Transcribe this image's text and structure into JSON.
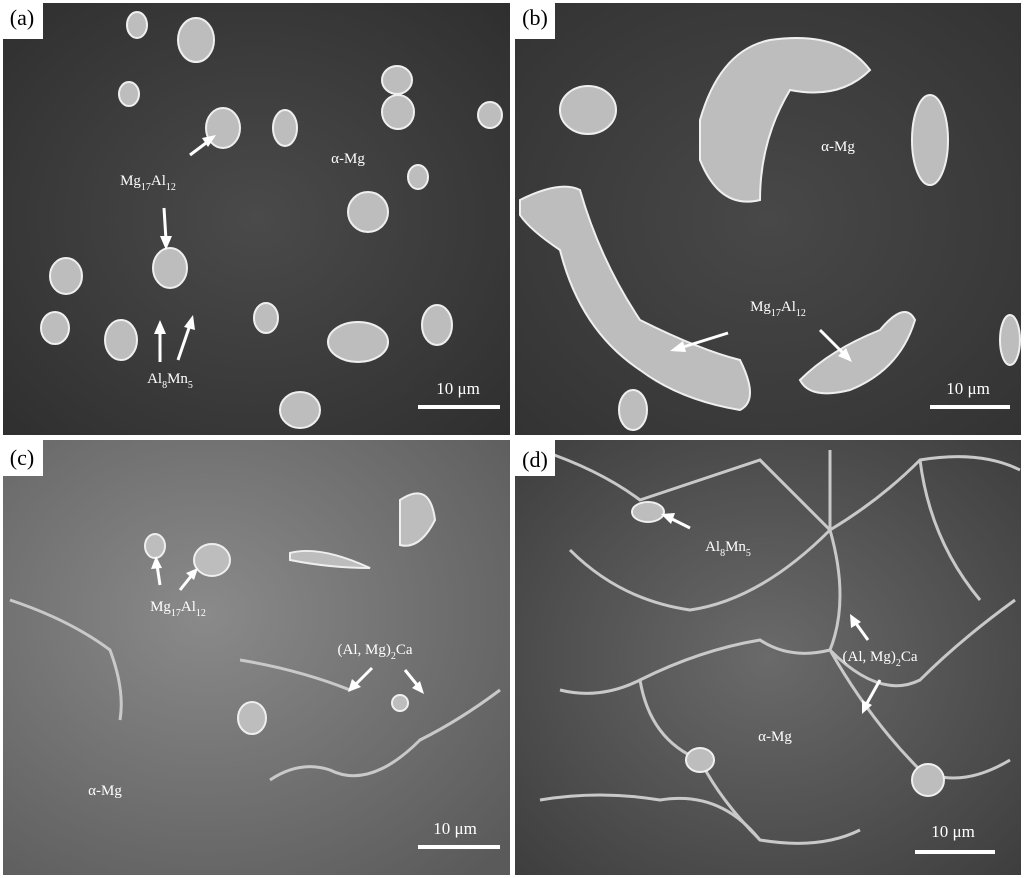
{
  "panels": [
    {
      "label": "(a)",
      "scale_bar": "10 μm",
      "annotations": [
        "Mg17Al12",
        "α-Mg",
        "Al8Mn5"
      ]
    },
    {
      "label": "(b)",
      "scale_bar": "10 μm",
      "annotations": [
        "α-Mg",
        "Mg17Al12"
      ]
    },
    {
      "label": "(c)",
      "scale_bar": "10 μm",
      "annotations": [
        "Mg17Al12",
        "(Al, Mg)2Ca",
        "α-Mg"
      ]
    },
    {
      "label": "(d)",
      "scale_bar": "10 μm",
      "annotations": [
        "Al8Mn5",
        "(Al, Mg)2Ca",
        "α-Mg"
      ]
    }
  ]
}
